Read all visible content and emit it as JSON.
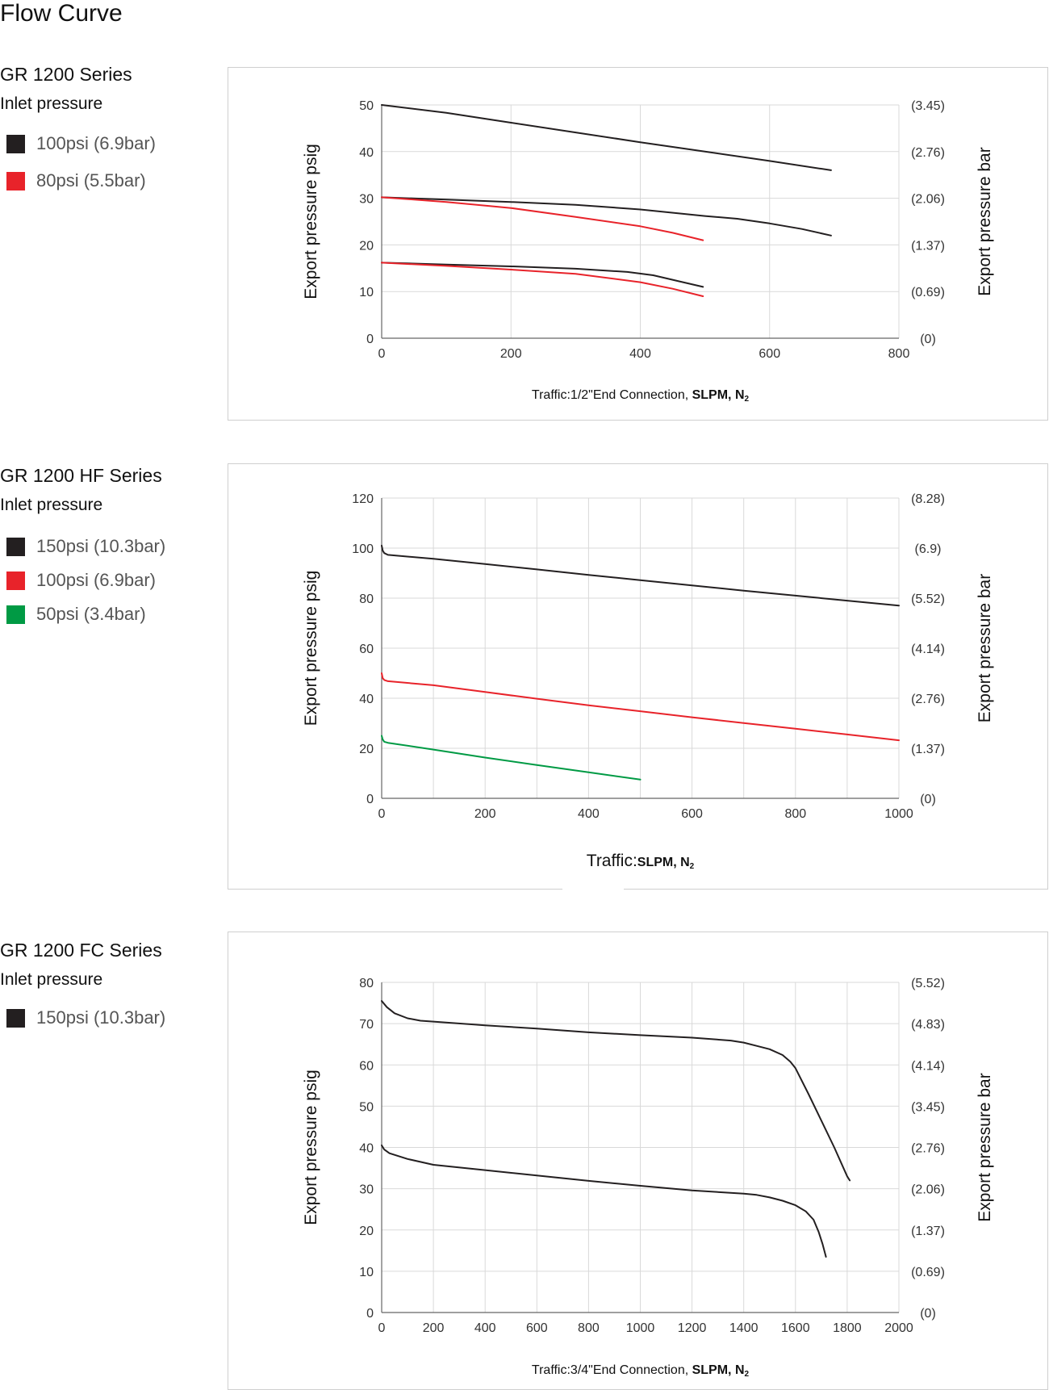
{
  "page": {
    "title": "Flow Curve"
  },
  "colors": {
    "black": "#231f20",
    "red": "#e8232a",
    "green": "#009a44",
    "grid": "#d9d9d9",
    "axis": "#555555"
  },
  "sections": [
    {
      "title": "GR 1200 Series",
      "inlet_label": "Inlet pressure",
      "legend": [
        {
          "label": "100psi (6.9bar)",
          "color": "#231f20"
        },
        {
          "label": "80psi (5.5bar)",
          "color": "#e8232a"
        }
      ]
    },
    {
      "title": "GR 1200 HF Series",
      "inlet_label": "Inlet pressure",
      "legend": [
        {
          "label": "150psi (10.3bar)",
          "color": "#231f20"
        },
        {
          "label": "100psi (6.9bar)",
          "color": "#e8232a"
        },
        {
          "label": "50psi (3.4bar)",
          "color": "#009a44"
        }
      ]
    },
    {
      "title": "GR 1200 FC Series",
      "inlet_label": "Inlet pressure",
      "legend": [
        {
          "label": "150psi (10.3bar)",
          "color": "#231f20"
        }
      ]
    }
  ],
  "chart_data": [
    {
      "type": "line",
      "ylabel": "Export pressure psig",
      "y2label": "Export pressure bar",
      "xlabel_prefix": "Traffic:1/2\"End Connection, ",
      "xlabel_bold": "SLPM, N",
      "xlabel_sub": "2",
      "xlim": [
        0,
        800
      ],
      "ylim": [
        0,
        50
      ],
      "x_ticks": [
        0,
        200,
        400,
        600,
        800
      ],
      "y_ticks": [
        0,
        10,
        20,
        30,
        40,
        50
      ],
      "y2_tick_labels": [
        "(0)",
        "(0.69)",
        "(1.37)",
        "(2.06)",
        "(2.76)",
        "(3.45)"
      ],
      "grid": true,
      "series": [
        {
          "color": "#231f20",
          "points": [
            [
              0,
              50
            ],
            [
              100,
              48.3
            ],
            [
              200,
              46.2
            ],
            [
              300,
              44.1
            ],
            [
              400,
              42
            ],
            [
              500,
              40
            ],
            [
              600,
              38
            ],
            [
              695,
              36
            ]
          ]
        },
        {
          "color": "#231f20",
          "points": [
            [
              0,
              30.2
            ],
            [
              100,
              29.7
            ],
            [
              200,
              29.2
            ],
            [
              300,
              28.6
            ],
            [
              400,
              27.6
            ],
            [
              500,
              26.2
            ],
            [
              550,
              25.6
            ],
            [
              600,
              24.6
            ],
            [
              650,
              23.4
            ],
            [
              695,
              22
            ]
          ]
        },
        {
          "color": "#e8232a",
          "points": [
            [
              0,
              30.2
            ],
            [
              100,
              29.2
            ],
            [
              200,
              27.9
            ],
            [
              300,
              26
            ],
            [
              400,
              24
            ],
            [
              450,
              22.6
            ],
            [
              497,
              21
            ]
          ]
        },
        {
          "color": "#231f20",
          "points": [
            [
              0,
              16.2
            ],
            [
              100,
              15.8
            ],
            [
              200,
              15.4
            ],
            [
              300,
              14.9
            ],
            [
              380,
              14.2
            ],
            [
              420,
              13.5
            ],
            [
              460,
              12.2
            ],
            [
              497,
              11
            ]
          ]
        },
        {
          "color": "#e8232a",
          "points": [
            [
              0,
              16.2
            ],
            [
              100,
              15.5
            ],
            [
              200,
              14.7
            ],
            [
              300,
              13.8
            ],
            [
              400,
              12
            ],
            [
              450,
              10.6
            ],
            [
              497,
              9
            ]
          ]
        }
      ]
    },
    {
      "type": "line",
      "ylabel": "Export pressure psig",
      "y2label": "Export pressure bar",
      "xlabel_prefix": "Traffic:",
      "xlabel_bold": "SLPM, N",
      "xlabel_sub": "2",
      "xlim": [
        0,
        1000
      ],
      "ylim": [
        0,
        120
      ],
      "x_ticks": [
        0,
        200,
        400,
        600,
        800,
        1000
      ],
      "x_grid_step": 100,
      "y_ticks": [
        0,
        20,
        40,
        60,
        80,
        100,
        120
      ],
      "y2_tick_labels": [
        "(0)",
        "(1.37)",
        "(2.76)",
        "(4.14)",
        "(5.52)",
        "(6.9)",
        "(8.28)"
      ],
      "grid": true,
      "series": [
        {
          "color": "#231f20",
          "points": [
            [
              0,
              101
            ],
            [
              2,
              99
            ],
            [
              5,
              98
            ],
            [
              12,
              97.3
            ],
            [
              100,
              95.7
            ],
            [
              200,
              93.6
            ],
            [
              300,
              91.5
            ],
            [
              400,
              89.3
            ],
            [
              500,
              87.2
            ],
            [
              600,
              85.1
            ],
            [
              700,
              83
            ],
            [
              800,
              81
            ],
            [
              900,
              79
            ],
            [
              1000,
              77
            ]
          ]
        },
        {
          "color": "#e8232a",
          "points": [
            [
              0,
              50
            ],
            [
              2,
              48
            ],
            [
              5,
              47.3
            ],
            [
              12,
              46.8
            ],
            [
              100,
              45.2
            ],
            [
              200,
              42.5
            ],
            [
              300,
              39.8
            ],
            [
              400,
              37.2
            ],
            [
              500,
              34.8
            ],
            [
              600,
              32.4
            ],
            [
              700,
              30.1
            ],
            [
              800,
              27.8
            ],
            [
              900,
              25.5
            ],
            [
              1000,
              23.2
            ]
          ]
        },
        {
          "color": "#009a44",
          "points": [
            [
              0,
              25
            ],
            [
              2,
              23.5
            ],
            [
              5,
              22.6
            ],
            [
              12,
              22.2
            ],
            [
              100,
              19.5
            ],
            [
              200,
              16.3
            ],
            [
              300,
              13.3
            ],
            [
              400,
              10.4
            ],
            [
              500,
              7.5
            ]
          ]
        }
      ]
    },
    {
      "type": "line",
      "ylabel": "Export pressure psig",
      "y2label": "Export pressure bar",
      "xlabel_prefix": "Traffic:3/4\"End Connection, ",
      "xlabel_bold": "SLPM, N",
      "xlabel_sub": "2",
      "xlim": [
        0,
        2000
      ],
      "ylim": [
        0,
        80
      ],
      "x_ticks": [
        0,
        200,
        400,
        600,
        800,
        1000,
        1200,
        1400,
        1600,
        1800,
        2000
      ],
      "y_ticks": [
        0,
        10,
        20,
        30,
        40,
        50,
        60,
        70,
        80
      ],
      "y2_tick_labels": [
        "(0)",
        "(0.69)",
        "(1.37)",
        "(2.06)",
        "(2.76)",
        "(3.45)",
        "(4.14)",
        "(4.83)",
        "(5.52)"
      ],
      "grid": true,
      "series": [
        {
          "color": "#231f20",
          "points": [
            [
              0,
              75.5
            ],
            [
              20,
              74
            ],
            [
              50,
              72.5
            ],
            [
              100,
              71.3
            ],
            [
              150,
              70.7
            ],
            [
              200,
              70.5
            ],
            [
              400,
              69.6
            ],
            [
              600,
              68.8
            ],
            [
              800,
              67.9
            ],
            [
              1000,
              67.2
            ],
            [
              1200,
              66.6
            ],
            [
              1350,
              65.9
            ],
            [
              1400,
              65.4
            ],
            [
              1450,
              64.6
            ],
            [
              1500,
              63.8
            ],
            [
              1550,
              62.4
            ],
            [
              1580,
              60.8
            ],
            [
              1600,
              59.2
            ],
            [
              1650,
              53
            ],
            [
              1700,
              46.5
            ],
            [
              1750,
              40
            ],
            [
              1800,
              33
            ],
            [
              1810,
              32
            ]
          ]
        },
        {
          "color": "#231f20",
          "points": [
            [
              0,
              40.5
            ],
            [
              10,
              39.5
            ],
            [
              30,
              38.6
            ],
            [
              100,
              37.2
            ],
            [
              200,
              35.8
            ],
            [
              400,
              34.5
            ],
            [
              600,
              33.2
            ],
            [
              800,
              31.9
            ],
            [
              1000,
              30.7
            ],
            [
              1200,
              29.6
            ],
            [
              1400,
              28.8
            ],
            [
              1450,
              28.5
            ],
            [
              1500,
              27.9
            ],
            [
              1550,
              27.1
            ],
            [
              1600,
              26
            ],
            [
              1640,
              24.5
            ],
            [
              1670,
              22.5
            ],
            [
              1690,
              19.5
            ],
            [
              1705,
              16.5
            ],
            [
              1718,
              13.5
            ]
          ]
        }
      ]
    }
  ]
}
